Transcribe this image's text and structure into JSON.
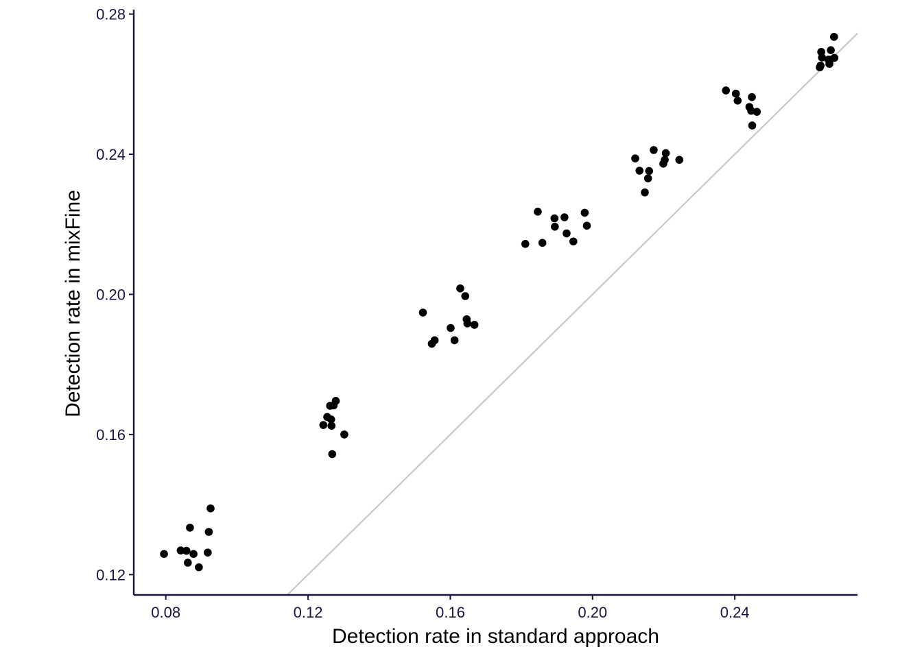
{
  "chart_data": {
    "type": "scatter",
    "title": "",
    "xlabel": "Detection rate in standard approach",
    "ylabel": "Detection rate in mixFine",
    "xlim": [
      0.071,
      0.2745
    ],
    "ylim": [
      0.1142,
      0.2805
    ],
    "xticks": [
      0.08,
      0.12,
      0.16,
      0.2,
      0.24
    ],
    "yticks": [
      0.12,
      0.16,
      0.2,
      0.24,
      0.28
    ],
    "xtick_labels": [
      "0.08",
      "0.12",
      "0.16",
      "0.20",
      "0.24"
    ],
    "ytick_labels": [
      "0.12",
      "0.16",
      "0.20",
      "0.24",
      "0.28"
    ],
    "grid": false,
    "legend": "none",
    "reference_line": {
      "type": "identity",
      "slope": 1,
      "intercept": 0,
      "color": "#c8c8c8"
    },
    "colors": {
      "points": "#000000",
      "axis": "#1a1440",
      "reference_line": "#c8c8c8"
    },
    "series": [
      {
        "x": [
          0.0795,
          0.0842,
          0.0858,
          0.0862,
          0.0868,
          0.0878,
          0.0893,
          0.0918,
          0.0921,
          0.0926,
          0.1243,
          0.1254,
          0.1262,
          0.1265,
          0.1266,
          0.1268,
          0.1272,
          0.1278,
          0.1302,
          0.1523,
          0.1548,
          0.1556,
          0.1601,
          0.1612,
          0.1628,
          0.1642,
          0.1646,
          0.1648,
          0.1668,
          0.1811,
          0.1846,
          0.1859,
          0.1893,
          0.1894,
          0.1921,
          0.1927,
          0.1946,
          0.1978,
          0.1984,
          0.212,
          0.2132,
          0.2147,
          0.2156,
          0.2159,
          0.2172,
          0.2199,
          0.2203,
          0.2206,
          0.2244,
          0.2375,
          0.2403,
          0.2408,
          0.2441,
          0.2446,
          0.2448,
          0.2449,
          0.2462,
          0.2639,
          0.2641,
          0.2643,
          0.2645,
          0.2663,
          0.2666,
          0.2668,
          0.267,
          0.2679,
          0.268
        ],
        "y": [
          0.1259,
          0.1269,
          0.1268,
          0.1234,
          0.1334,
          0.1259,
          0.1221,
          0.1263,
          0.1322,
          0.1389,
          0.1627,
          0.165,
          0.1682,
          0.1643,
          0.1625,
          0.1544,
          0.1683,
          0.1696,
          0.16,
          0.1948,
          0.1859,
          0.1869,
          0.1904,
          0.1869,
          0.2017,
          0.1995,
          0.1929,
          0.1917,
          0.1913,
          0.2144,
          0.2236,
          0.2147,
          0.2217,
          0.2193,
          0.222,
          0.2174,
          0.2151,
          0.2233,
          0.2196,
          0.2388,
          0.2353,
          0.2291,
          0.2331,
          0.2352,
          0.2412,
          0.2373,
          0.2384,
          0.2403,
          0.2384,
          0.2582,
          0.2573,
          0.2553,
          0.2535,
          0.2524,
          0.2563,
          0.2482,
          0.2521,
          0.2648,
          0.2653,
          0.2692,
          0.2676,
          0.267,
          0.2658,
          0.267,
          0.2697,
          0.2735,
          0.2675
        ]
      }
    ]
  }
}
